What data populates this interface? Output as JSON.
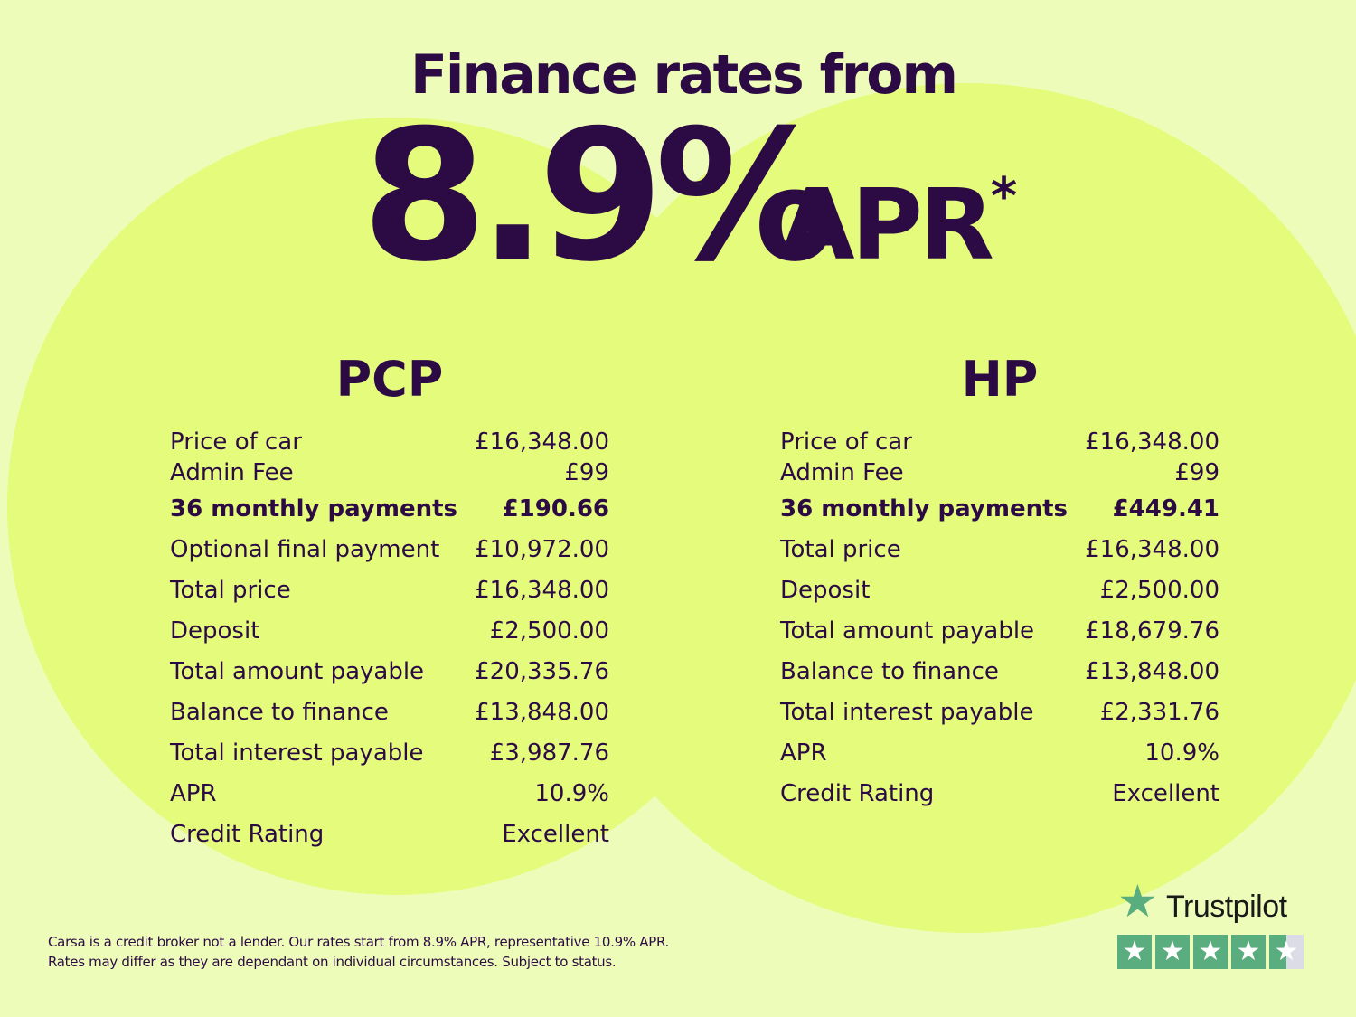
{
  "header": {
    "title": "Finance rates from",
    "rate": "8.9%",
    "rate_suffix": "APR",
    "asterisk": "*"
  },
  "pcp": {
    "title": "PCP",
    "rows": [
      {
        "label": "Price of car",
        "value": "£16,348.00"
      },
      {
        "label": "Admin Fee",
        "value": "£99"
      },
      {
        "label": "36 monthly payments",
        "value": "£190.66"
      },
      {
        "label": "Optional final payment",
        "value": "£10,972.00"
      },
      {
        "label": "Total price",
        "value": "£16,348.00"
      },
      {
        "label": "Deposit",
        "value": "£2,500.00"
      },
      {
        "label": "Total amount payable",
        "value": "£20,335.76"
      },
      {
        "label": "Balance to finance",
        "value": "£13,848.00"
      },
      {
        "label": "Total interest payable",
        "value": "£3,987.76"
      },
      {
        "label": "APR",
        "value": "10.9%"
      },
      {
        "label": "Credit Rating",
        "value": "Excellent"
      }
    ]
  },
  "hp": {
    "title": "HP",
    "rows": [
      {
        "label": "Price of car",
        "value": "£16,348.00"
      },
      {
        "label": "Admin Fee",
        "value": "£99"
      },
      {
        "label": "36 monthly payments",
        "value": "£449.41"
      },
      {
        "label": "Total price",
        "value": "£16,348.00"
      },
      {
        "label": "Deposit",
        "value": "£2,500.00"
      },
      {
        "label": "Total amount payable",
        "value": "£18,679.76"
      },
      {
        "label": "Balance to finance",
        "value": "£13,848.00"
      },
      {
        "label": "Total interest payable",
        "value": "£2,331.76"
      },
      {
        "label": "APR",
        "value": "10.9%"
      },
      {
        "label": "Credit Rating",
        "value": "Excellent"
      }
    ]
  },
  "footnote": {
    "line1": "Carsa is a credit broker not a lender. Our rates start from 8.9% APR, representative 10.9% APR.",
    "line2": "Rates may differ as they are dependant on individual circumstances. Subject to status."
  },
  "trustpilot": {
    "name": "Trustpilot",
    "rating_stars": 4.5,
    "brand_color": "#5aad7e"
  },
  "colors": {
    "background": "#eefcb9",
    "circle": "#e4fb7b",
    "text": "#2c0b45"
  }
}
